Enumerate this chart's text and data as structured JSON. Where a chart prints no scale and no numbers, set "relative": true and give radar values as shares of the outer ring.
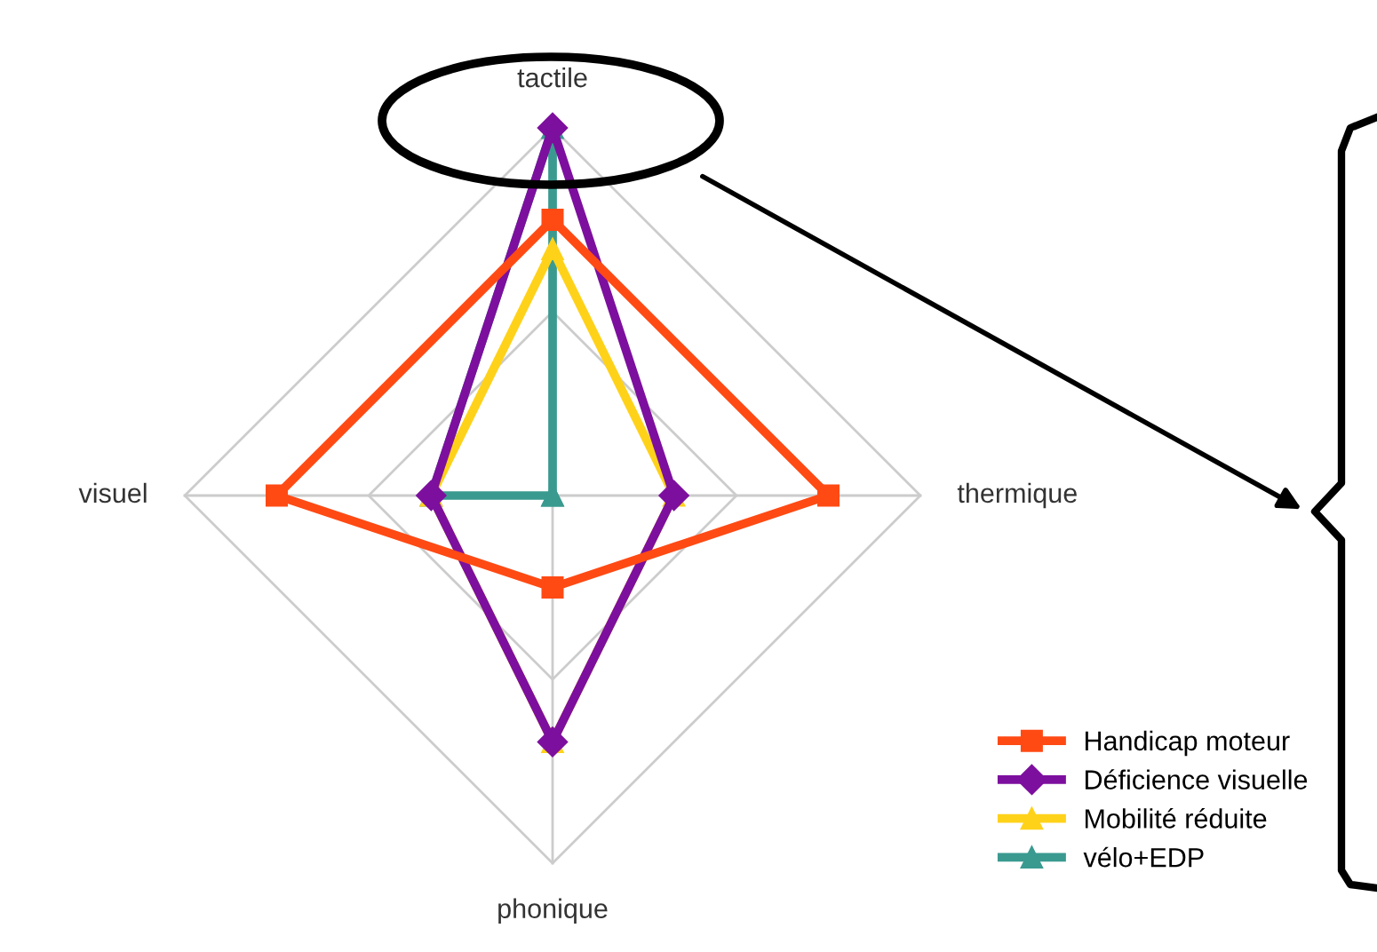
{
  "chart_data": {
    "type": "radar",
    "relative": true,
    "categories": [
      "tactile",
      "thermique",
      "phonique",
      "visuel"
    ],
    "series": [
      {
        "name": "Handicap moteur",
        "color": "#ff4a14",
        "marker": "square",
        "values": [
          0.75,
          0.75,
          0.25,
          0.75
        ]
      },
      {
        "name": "Déficience visuelle",
        "color": "#7d0f9e",
        "marker": "diamond",
        "values": [
          1,
          0.33,
          0.67,
          0.33
        ]
      },
      {
        "name": "Mobilité réduite",
        "color": "#ffd21a",
        "marker": "triangle",
        "values": [
          0.67,
          0.33,
          0.67,
          0.33
        ]
      },
      {
        "name": "vélo+EDP",
        "color": "#3a9a90",
        "marker": "triangle",
        "values": [
          1,
          0,
          0,
          0.33
        ]
      }
    ],
    "grid": true,
    "legend": "bottom right"
  }
}
